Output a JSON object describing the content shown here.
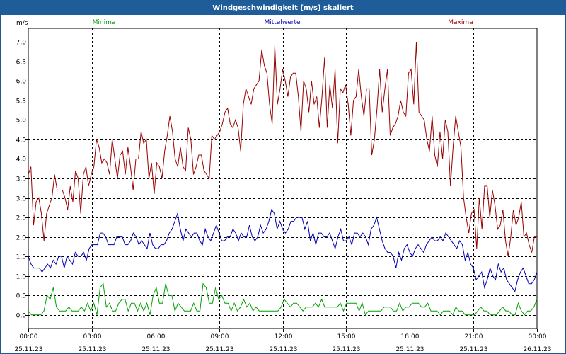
{
  "window": {
    "title": "Windgeschwindigkeit [m/s] skaliert"
  },
  "colors": {
    "min": "#00a000",
    "mean": "#0000b0",
    "max": "#990000",
    "title_bg": "#1f5d9a",
    "grid": "#000000"
  },
  "chart_data": {
    "type": "line",
    "title": "Windgeschwindigkeit [m/s] skaliert",
    "ylabel": "m/s",
    "ylim": [
      -0.35,
      7.35
    ],
    "yticks": [
      "0,0",
      "0,5",
      "1,0",
      "1,5",
      "2,0",
      "2,5",
      "3,0",
      "3,5",
      "4,0",
      "4,5",
      "5,0",
      "5,5",
      "6,0",
      "6,5",
      "7,0"
    ],
    "ytick_values": [
      0,
      0.5,
      1,
      1.5,
      2,
      2.5,
      3,
      3.5,
      4,
      4.5,
      5,
      5.5,
      6,
      6.5,
      7
    ],
    "xlim": [
      0,
      24
    ],
    "xticks": [
      {
        "time": "00:00",
        "date": "25.11.23"
      },
      {
        "time": "03:00",
        "date": "25.11.23"
      },
      {
        "time": "06:00",
        "date": "25.11.23"
      },
      {
        "time": "09:00",
        "date": "25.11.23"
      },
      {
        "time": "12:00",
        "date": "25.11.23"
      },
      {
        "time": "15:00",
        "date": "25.11.23"
      },
      {
        "time": "18:00",
        "date": "25.11.23"
      },
      {
        "time": "21:00",
        "date": "25.11.23"
      },
      {
        "time": "00:00",
        "date": "26.11.23"
      }
    ],
    "grid": true,
    "legend_position": "top",
    "series": [
      {
        "name": "Minima",
        "color": "#00a000",
        "values": [
          0.1,
          0.0,
          0.0,
          0.0,
          0.0,
          0.1,
          0.5,
          0.4,
          0.7,
          0.2,
          0.1,
          0.1,
          0.1,
          0.2,
          0.1,
          0.1,
          0.1,
          0.2,
          0.1,
          0.3,
          0.1,
          0.3,
          0.0,
          0.7,
          0.8,
          0.2,
          0.3,
          0.1,
          0.1,
          0.3,
          0.4,
          0.4,
          0.1,
          0.3,
          0.3,
          0.1,
          0.3,
          0.1,
          0.3,
          0.0,
          0.5,
          0.7,
          0.3,
          0.3,
          0.8,
          0.5,
          0.5,
          0.1,
          0.3,
          0.2,
          0.1,
          0.1,
          0.1,
          0.3,
          0.1,
          0.1,
          0.8,
          0.7,
          0.3,
          0.3,
          0.7,
          0.4,
          0.5,
          0.3,
          0.3,
          0.1,
          0.3,
          0.1,
          0.2,
          0.4,
          0.2,
          0.3,
          0.1,
          0.2,
          0.1,
          0.1,
          0.1,
          0.1,
          0.1,
          0.1,
          0.1,
          0.2,
          0.4,
          0.3,
          0.2,
          0.3,
          0.3,
          0.2,
          0.1,
          0.2,
          0.2,
          0.2,
          0.3,
          0.2,
          0.4,
          0.2,
          0.2,
          0.2,
          0.2,
          0.2,
          0.3,
          0.1,
          0.3,
          0.3,
          0.3,
          0.3,
          0.1,
          0.3,
          0.0,
          0.1,
          0.1,
          0.1,
          0.1,
          0.1,
          0.2,
          0.2,
          0.2,
          0.1,
          0.1,
          0.3,
          0.1,
          0.2,
          0.2,
          0.3,
          0.3,
          0.3,
          0.2,
          0.2,
          0.3,
          0.1,
          0.1,
          0.1,
          0.0,
          0.1,
          0.1,
          0.1,
          0.0,
          0.2,
          0.1,
          0.1,
          0.0,
          0.0,
          0.0,
          0.0,
          0.1,
          0.2,
          0.1,
          0.1,
          0.0,
          0.0,
          0.0,
          0.1,
          0.2,
          0.1,
          0.1,
          0.0,
          0.0,
          0.3,
          0.1,
          0.0,
          0.1,
          0.1,
          0.2,
          0.4
        ]
      },
      {
        "name": "Mittelwerte",
        "color": "#0000b0",
        "values": [
          1.5,
          1.3,
          1.2,
          1.2,
          1.2,
          1.1,
          1.2,
          1.3,
          1.2,
          1.4,
          1.3,
          1.5,
          1.5,
          1.2,
          1.5,
          1.4,
          1.3,
          1.6,
          1.5,
          1.5,
          1.6,
          1.4,
          1.7,
          1.8,
          1.8,
          1.8,
          2.1,
          2.1,
          2.0,
          1.8,
          1.8,
          1.8,
          2.0,
          2.0,
          2.0,
          1.8,
          1.8,
          1.9,
          2.1,
          2.0,
          1.8,
          1.9,
          1.8,
          1.7,
          2.1,
          1.8,
          1.7,
          1.7,
          1.8,
          1.8,
          1.9,
          2.1,
          2.2,
          2.4,
          2.6,
          2.2,
          1.9,
          2.2,
          2.1,
          2.0,
          2.1,
          2.1,
          1.9,
          1.8,
          2.2,
          2.0,
          1.9,
          2.1,
          2.3,
          2.1,
          1.9,
          1.9,
          2.0,
          2.0,
          2.2,
          2.1,
          1.9,
          2.1,
          2.0,
          2.0,
          2.3,
          2.0,
          1.9,
          2.0,
          2.3,
          2.1,
          2.2,
          2.4,
          2.7,
          2.6,
          2.2,
          2.4,
          2.2,
          2.1,
          2.2,
          2.4,
          2.4,
          2.5,
          2.5,
          2.5,
          2.2,
          2.4,
          1.9,
          2.1,
          1.8,
          2.1,
          2.1,
          2.0,
          2.0,
          2.1,
          1.9,
          1.7,
          2.0,
          2.2,
          1.9,
          1.9,
          2.0,
          1.8,
          2.1,
          2.1,
          2.0,
          2.1,
          2.0,
          1.8,
          2.2,
          2.3,
          2.5,
          2.2,
          1.9,
          1.7,
          1.6,
          1.6,
          1.5,
          1.2,
          1.6,
          1.4,
          1.7,
          1.8,
          1.6,
          1.5,
          1.7,
          1.8,
          1.7,
          1.6,
          1.8,
          1.9,
          2.0,
          1.9,
          1.9,
          2.0,
          1.9,
          2.1,
          2.0,
          1.9,
          1.8,
          1.7,
          1.9,
          1.8,
          1.4,
          1.6,
          1.3,
          1.2,
          0.9,
          1.0,
          1.1,
          0.7,
          0.9,
          1.2,
          1.0,
          0.9,
          1.3,
          1.1,
          1.2,
          0.9,
          0.8,
          0.7,
          0.6,
          0.9,
          1.1,
          1.2,
          1.0,
          0.8,
          0.8,
          0.9,
          1.1
        ]
      },
      {
        "name": "Maxima",
        "color": "#990000",
        "values": [
          3.6,
          3.8,
          2.3,
          2.9,
          3.0,
          2.6,
          1.9,
          2.6,
          2.8,
          3.0,
          3.6,
          3.2,
          3.2,
          3.2,
          3.0,
          2.7,
          3.3,
          2.9,
          3.7,
          3.5,
          2.6,
          3.6,
          3.8,
          3.3,
          3.6,
          3.8,
          4.5,
          4.3,
          3.9,
          4.0,
          3.9,
          3.6,
          4.5,
          4.0,
          3.5,
          4.1,
          4.2,
          3.6,
          4.3,
          3.8,
          3.2,
          4.0,
          4.0,
          4.7,
          4.4,
          4.5,
          3.5,
          3.9,
          3.1,
          3.9,
          3.8,
          3.5,
          4.2,
          4.6,
          5.1,
          4.7,
          4.0,
          3.8,
          4.3,
          3.8,
          3.7,
          4.8,
          4.5,
          3.6,
          3.8,
          4.1,
          4.1,
          3.7,
          3.6,
          3.5,
          4.6,
          4.5,
          4.6,
          4.7,
          4.9,
          5.2,
          5.3,
          4.9,
          4.8,
          5.0,
          4.8,
          4.2,
          5.4,
          5.8,
          5.6,
          5.4,
          5.8,
          5.9,
          6.0,
          6.8,
          6.4,
          6.2,
          5.4,
          4.9,
          6.9,
          5.4,
          5.8,
          6.3,
          6.0,
          5.6,
          6.1,
          6.2,
          6.2,
          5.6,
          4.7,
          6.0,
          5.8,
          5.2,
          6.0,
          5.4,
          5.6,
          4.8,
          5.6,
          6.6,
          4.8,
          5.9,
          5.3,
          6.3,
          4.4,
          5.8,
          5.7,
          5.9,
          5.4,
          4.6,
          5.5,
          5.6,
          6.3,
          5.6,
          5.1,
          5.8,
          5.8,
          4.1,
          4.5,
          5.3,
          6.3,
          5.2,
          5.8,
          6.3,
          4.6,
          4.8,
          4.9,
          5.1,
          5.5,
          5.2,
          5.1,
          6.2,
          6.3,
          5.4,
          7.0,
          5.2,
          5.1,
          5.0,
          4.5,
          4.2,
          5.1,
          4.1,
          3.8,
          4.7,
          4.0,
          5.0,
          4.7,
          3.3,
          4.3,
          5.1,
          4.7,
          4.3,
          3.0,
          2.5,
          2.1,
          2.6,
          2.7,
          1.7,
          3.0,
          2.2,
          3.3,
          3.3,
          2.5,
          3.2,
          2.8,
          2.2,
          2.3,
          2.7,
          1.9,
          1.5,
          2.0,
          2.7,
          2.3,
          2.5,
          2.9,
          2.0,
          2.1,
          1.8,
          1.6,
          2.0,
          2.0
        ]
      }
    ]
  }
}
